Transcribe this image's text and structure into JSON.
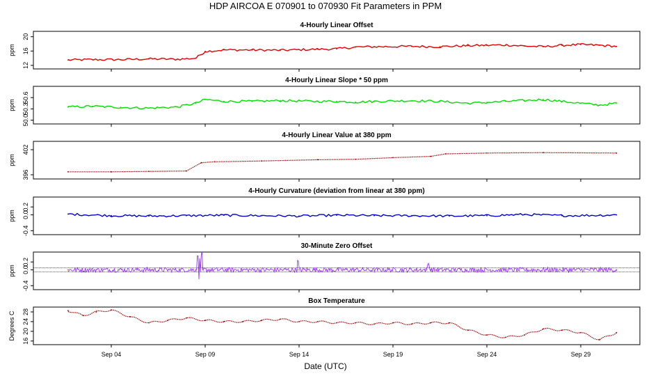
{
  "title": "HDP   AIRCOA E   070901 to 070930   Fit Parameters in PPM",
  "xlabel": "Date (UTC)",
  "x_ticks": [
    "Sep 04",
    "Sep 09",
    "Sep 14",
    "Sep 19",
    "Sep 24",
    "Sep 29"
  ],
  "colors": {
    "red": "#e00000",
    "green": "#00dd00",
    "darkred": "#990000",
    "blue": "#0000cc",
    "purple": "#9933ff"
  },
  "chart_data": [
    {
      "type": "line",
      "title": "4-Hourly Linear Offset",
      "ylabel": "ppm",
      "ylim": [
        11,
        21.5
      ],
      "yticks": [
        "12",
        "16",
        "20"
      ],
      "ytick_values": [
        12,
        16,
        20
      ],
      "color": "#e00000",
      "style": "line",
      "xlim": [
        0,
        31
      ],
      "x": [
        1.7,
        3,
        4.5,
        6,
        7.5,
        8.5,
        9,
        10,
        11.5,
        13,
        15,
        16,
        17,
        18,
        20,
        21.5,
        23,
        24,
        25,
        26,
        27,
        28,
        29,
        30,
        30.9
      ],
      "values": [
        13.5,
        13.6,
        13.6,
        13.8,
        13.7,
        14.0,
        15.9,
        16.3,
        16.3,
        16.2,
        16.5,
        16.6,
        17.1,
        17.2,
        17.3,
        17.2,
        17.5,
        17.6,
        17.7,
        17.4,
        17.2,
        17.6,
        17.8,
        17.6,
        17.3
      ]
    },
    {
      "type": "line",
      "title": "4-Hourly Linear Slope * 50 ppm",
      "ylabel": "ppm",
      "ylim": [
        49.9,
        50.9
      ],
      "yticks": [
        "50.0",
        "50.3",
        "50.6"
      ],
      "ytick_values": [
        50.0,
        50.3,
        50.6
      ],
      "color": "#00dd00",
      "style": "line",
      "xlim": [
        0,
        31
      ],
      "x": [
        1.7,
        3,
        4.5,
        6,
        7.5,
        8.5,
        9,
        10,
        11.5,
        13,
        15,
        16,
        17,
        18,
        20,
        21.5,
        23,
        24,
        25,
        26,
        27,
        28,
        29,
        30,
        30.9
      ],
      "values": [
        50.35,
        50.37,
        50.34,
        50.32,
        50.35,
        50.45,
        50.55,
        50.5,
        50.5,
        50.52,
        50.5,
        50.5,
        50.48,
        50.5,
        50.52,
        50.5,
        50.45,
        50.47,
        50.5,
        50.52,
        50.55,
        50.5,
        50.45,
        50.4,
        50.45
      ]
    },
    {
      "type": "line",
      "title": "4-Hourly Linear Value at 380 ppm",
      "ylabel": "ppm",
      "ylim": [
        395,
        404
      ],
      "yticks": [
        "396",
        "402"
      ],
      "ytick_values": [
        396,
        402
      ],
      "color": "#990000",
      "style": "dots",
      "xlim": [
        0,
        31
      ],
      "x": [
        1.7,
        4,
        6,
        8,
        8.8,
        9.5,
        12,
        15,
        17,
        19,
        21,
        21.8,
        24,
        27,
        30.9
      ],
      "values": [
        396.7,
        396.7,
        396.8,
        396.9,
        398.9,
        399.1,
        399.3,
        399.6,
        399.7,
        400.1,
        400.4,
        401.0,
        401.2,
        401.3,
        401.2
      ]
    },
    {
      "type": "line",
      "title": "4-Hourly Curvature (deviation from linear at 380 ppm)",
      "ylabel": "ppm",
      "ylim": [
        -0.5,
        0.45
      ],
      "yticks": [
        "-0.4",
        "0.0",
        "0.2"
      ],
      "ytick_values": [
        -0.4,
        0.0,
        0.2
      ],
      "color": "#0000cc",
      "style": "line",
      "xlim": [
        0,
        31
      ],
      "x": [
        1.7,
        4,
        6,
        8,
        10,
        12,
        14,
        16,
        18,
        20,
        22,
        24,
        26,
        28,
        30,
        30.9
      ],
      "values": [
        0.02,
        -0.02,
        -0.03,
        -0.02,
        -0.01,
        -0.02,
        -0.03,
        -0.01,
        -0.02,
        -0.02,
        -0.03,
        -0.02,
        0.01,
        -0.02,
        -0.01,
        0.0
      ]
    },
    {
      "type": "line",
      "title": "30-Minute Zero Offset",
      "ylabel": "ppm",
      "ylim": [
        -0.5,
        0.45
      ],
      "yticks": [
        "-0.4",
        "0.0",
        "0.2"
      ],
      "ytick_values": [
        -0.4,
        0.0,
        0.2
      ],
      "ref_lines": [
        0.05,
        -0.05
      ],
      "color": "#9933ff",
      "style": "noisy",
      "xlim": [
        0,
        31
      ],
      "x": [
        1.7,
        8.5,
        8.9,
        13.9,
        14.0,
        20.8,
        21.0,
        30.9
      ],
      "values": [
        0.0,
        0.0,
        0.0,
        0.0,
        0.0,
        0.0,
        0.0,
        0.0
      ]
    },
    {
      "type": "line",
      "title": "Box Temperature",
      "ylabel": "Degrees C",
      "ylim": [
        14.5,
        30
      ],
      "yticks": [
        "16",
        "20",
        "24",
        "28"
      ],
      "ytick_values": [
        16,
        20,
        24,
        28
      ],
      "color": "#990000",
      "style": "dots",
      "xlim": [
        0,
        31
      ],
      "x": [
        1.7,
        2.5,
        3.2,
        4,
        5,
        6,
        7,
        8,
        9,
        10,
        11,
        12,
        13,
        14,
        15,
        16,
        17,
        18,
        19,
        20,
        21,
        22,
        23,
        24,
        25,
        26,
        27,
        28,
        29,
        30,
        30.9
      ],
      "values": [
        28.5,
        26.5,
        28.0,
        28.8,
        26.0,
        23.5,
        24.5,
        25.5,
        24.5,
        24.0,
        24.0,
        24.5,
        25.0,
        24.0,
        24.0,
        23.5,
        23.5,
        23.0,
        23.5,
        23.0,
        23.5,
        23.5,
        20.5,
        18.5,
        17.5,
        18.5,
        21.0,
        20.5,
        19.5,
        16.5,
        19.5
      ]
    }
  ]
}
